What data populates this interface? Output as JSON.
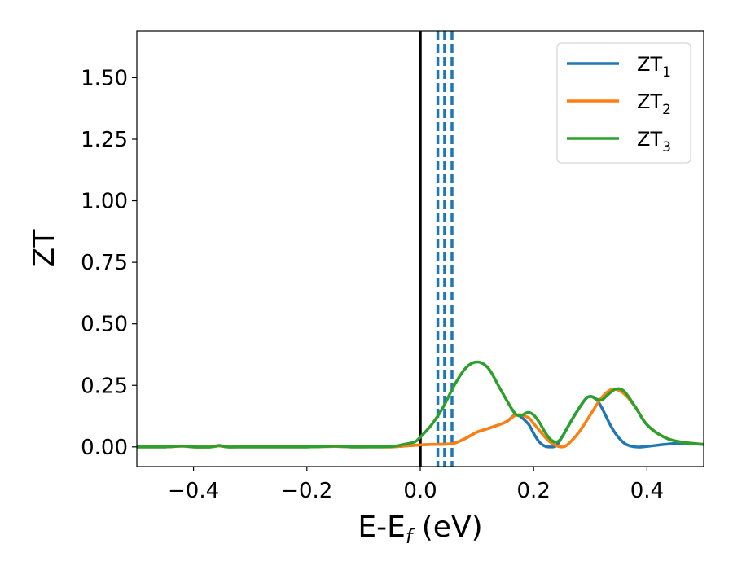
{
  "chart_data": {
    "type": "line",
    "xlabel": {
      "main": "E-E",
      "sub": "f",
      "unit": " (eV)"
    },
    "ylabel": "ZT",
    "xlim": [
      -0.5,
      0.5
    ],
    "ylim": [
      -0.08,
      1.69
    ],
    "xticks": [
      -0.4,
      -0.2,
      0.0,
      0.2,
      0.4
    ],
    "xtick_labels": [
      "−0.4",
      "−0.2",
      "0.0",
      "0.2",
      "0.4"
    ],
    "yticks": [
      0.0,
      0.25,
      0.5,
      0.75,
      1.0,
      1.25,
      1.5
    ],
    "ytick_labels": [
      "0.00",
      "0.25",
      "0.50",
      "0.75",
      "1.00",
      "1.25",
      "1.50"
    ],
    "grid": false,
    "legend_position": "top-right",
    "vertical_lines": [
      {
        "x": 0.0,
        "style": "solid",
        "color": "#000000"
      },
      {
        "x": 0.031,
        "style": "dashed",
        "color": "#1f77b4"
      },
      {
        "x": 0.043,
        "style": "dashed",
        "color": "#1f77b4"
      },
      {
        "x": 0.056,
        "style": "dashed",
        "color": "#1f77b4"
      }
    ],
    "series": [
      {
        "name": "ZT",
        "subscript": "1",
        "color": "#1f77b4",
        "x": [
          -0.5,
          -0.45,
          -0.42,
          -0.4,
          -0.37,
          -0.355,
          -0.34,
          -0.3,
          -0.2,
          -0.15,
          -0.12,
          -0.1,
          -0.05,
          -0.02,
          0.0,
          0.02,
          0.04,
          0.06,
          0.08,
          0.1,
          0.12,
          0.15,
          0.17,
          0.19,
          0.2,
          0.21,
          0.22,
          0.23,
          0.24,
          0.25,
          0.27,
          0.29,
          0.3,
          0.31,
          0.32,
          0.34,
          0.36,
          0.38,
          0.4,
          0.43,
          0.46,
          0.5
        ],
        "y": [
          0.0,
          0.0,
          0.003,
          0.0,
          0.0,
          0.004,
          0.0,
          0.0,
          0.0,
          0.002,
          0.0,
          0.0,
          0.0,
          0.005,
          0.008,
          0.01,
          0.011,
          0.015,
          0.035,
          0.06,
          0.075,
          0.1,
          0.13,
          0.095,
          0.055,
          0.02,
          0.003,
          0.0,
          0.005,
          0.04,
          0.12,
          0.19,
          0.205,
          0.195,
          0.16,
          0.07,
          0.015,
          0.0,
          0.002,
          0.01,
          0.015,
          0.01
        ]
      },
      {
        "name": "ZT",
        "subscript": "2",
        "color": "#ff7f0e",
        "x": [
          -0.5,
          -0.45,
          -0.42,
          -0.4,
          -0.37,
          -0.355,
          -0.34,
          -0.3,
          -0.2,
          -0.15,
          -0.12,
          -0.1,
          -0.05,
          -0.02,
          0.0,
          0.02,
          0.04,
          0.06,
          0.08,
          0.1,
          0.12,
          0.15,
          0.17,
          0.19,
          0.2,
          0.22,
          0.23,
          0.24,
          0.25,
          0.26,
          0.28,
          0.3,
          0.32,
          0.34,
          0.36,
          0.38,
          0.4,
          0.43,
          0.46,
          0.5
        ],
        "y": [
          0.0,
          0.0,
          0.003,
          0.0,
          0.0,
          0.004,
          0.0,
          0.0,
          0.0,
          0.002,
          0.0,
          0.0,
          0.0,
          0.005,
          0.008,
          0.01,
          0.011,
          0.015,
          0.035,
          0.06,
          0.075,
          0.1,
          0.13,
          0.12,
          0.095,
          0.04,
          0.018,
          0.005,
          0.0,
          0.01,
          0.06,
          0.13,
          0.2,
          0.235,
          0.215,
          0.16,
          0.09,
          0.04,
          0.02,
          0.01
        ]
      },
      {
        "name": "ZT",
        "subscript": "3",
        "color": "#2ca02c",
        "x": [
          -0.5,
          -0.45,
          -0.42,
          -0.4,
          -0.37,
          -0.355,
          -0.34,
          -0.3,
          -0.2,
          -0.15,
          -0.12,
          -0.1,
          -0.05,
          -0.03,
          -0.01,
          0.0,
          0.02,
          0.04,
          0.06,
          0.08,
          0.1,
          0.12,
          0.14,
          0.16,
          0.17,
          0.18,
          0.19,
          0.2,
          0.21,
          0.22,
          0.23,
          0.24,
          0.25,
          0.27,
          0.29,
          0.3,
          0.31,
          0.32,
          0.33,
          0.345,
          0.36,
          0.38,
          0.4,
          0.43,
          0.46,
          0.5
        ],
        "y": [
          0.0,
          0.0,
          0.004,
          0.0,
          0.0,
          0.006,
          0.0,
          0.0,
          0.0,
          0.003,
          0.0,
          0.0,
          0.002,
          0.01,
          0.02,
          0.04,
          0.09,
          0.16,
          0.25,
          0.32,
          0.345,
          0.32,
          0.24,
          0.16,
          0.13,
          0.13,
          0.14,
          0.13,
          0.1,
          0.06,
          0.03,
          0.02,
          0.04,
          0.12,
          0.19,
          0.205,
          0.195,
          0.19,
          0.21,
          0.235,
          0.225,
          0.16,
          0.09,
          0.04,
          0.02,
          0.01
        ]
      }
    ]
  }
}
